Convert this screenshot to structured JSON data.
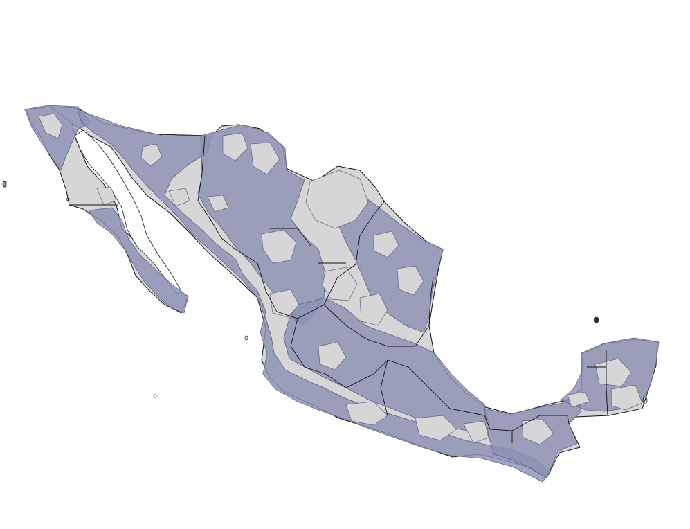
{
  "map": {
    "subject": "Mexico",
    "colors": {
      "background": "#ffffff",
      "land_fill": "#d6d6d6",
      "overlay_fill": "#8c91b4",
      "overlay_opacity": "0.82",
      "overlay_outline": "#5d6283",
      "border": "#111111"
    }
  }
}
